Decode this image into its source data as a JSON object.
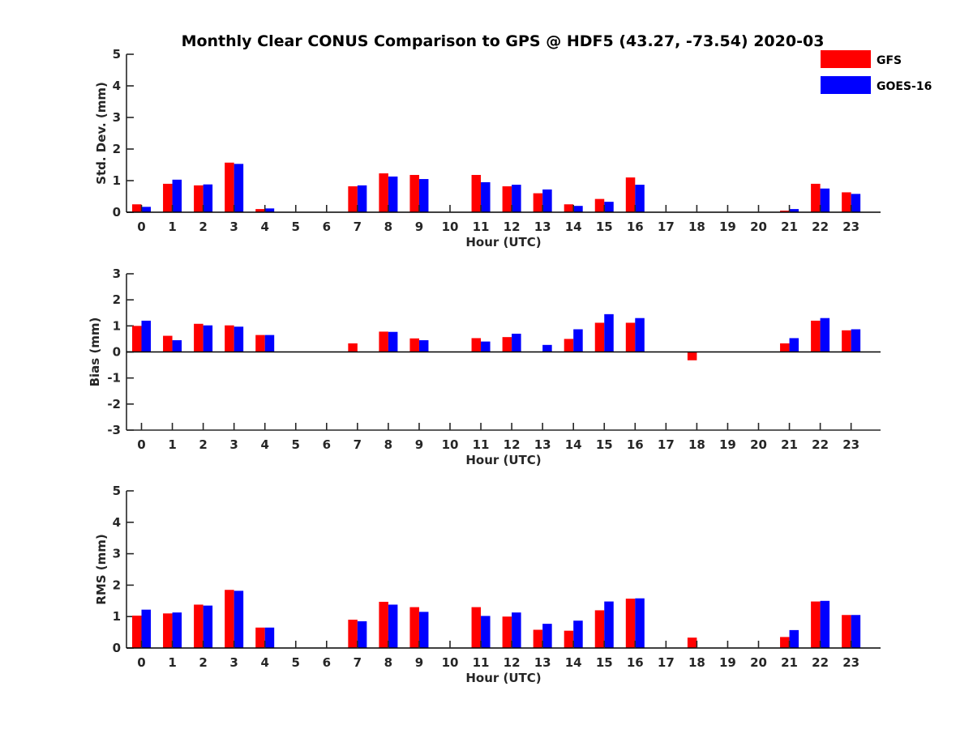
{
  "title": "Monthly Clear CONUS Comparison to GPS @ HDF5 (43.27, -73.54) 2020-03",
  "colors": {
    "GFS": "#ff0000",
    "GOES-16": "#0000ff"
  },
  "legend": {
    "placement": "top-right",
    "entries": [
      "GFS",
      "GOES-16"
    ]
  },
  "chart_data": [
    {
      "type": "bar",
      "ylabel": "Std. Dev. (mm)",
      "xlabel": "Hour (UTC)",
      "ylim": [
        0,
        5
      ],
      "yticks": [
        0,
        1,
        2,
        3,
        4,
        5
      ],
      "categories": [
        "0",
        "1",
        "2",
        "3",
        "4",
        "5",
        "6",
        "7",
        "8",
        "9",
        "10",
        "11",
        "12",
        "13",
        "14",
        "15",
        "16",
        "17",
        "18",
        "19",
        "20",
        "21",
        "22",
        "23"
      ],
      "series": [
        {
          "name": "GFS",
          "values": [
            0.25,
            0.9,
            0.85,
            1.57,
            0.1,
            null,
            null,
            0.82,
            1.23,
            1.18,
            null,
            1.18,
            0.82,
            0.6,
            0.25,
            0.42,
            1.1,
            null,
            null,
            null,
            null,
            0.05,
            0.9,
            0.63
          ]
        },
        {
          "name": "GOES-16",
          "values": [
            0.17,
            1.03,
            0.88,
            1.53,
            0.12,
            null,
            null,
            0.85,
            1.13,
            1.05,
            null,
            0.95,
            0.87,
            0.72,
            0.2,
            0.33,
            0.87,
            null,
            null,
            null,
            null,
            0.1,
            0.75,
            0.58
          ]
        }
      ]
    },
    {
      "type": "bar",
      "ylabel": "Bias (mm)",
      "xlabel": "Hour (UTC)",
      "ylim": [
        -3,
        3
      ],
      "yticks": [
        -3,
        -2,
        -1,
        0,
        1,
        2,
        3
      ],
      "categories": [
        "0",
        "1",
        "2",
        "3",
        "4",
        "5",
        "6",
        "7",
        "8",
        "9",
        "10",
        "11",
        "12",
        "13",
        "14",
        "15",
        "16",
        "17",
        "18",
        "19",
        "20",
        "21",
        "22",
        "23"
      ],
      "series": [
        {
          "name": "GFS",
          "values": [
            1.0,
            0.62,
            1.08,
            1.02,
            0.65,
            null,
            null,
            0.33,
            0.78,
            0.52,
            null,
            0.53,
            0.57,
            null,
            0.5,
            1.12,
            1.12,
            null,
            -0.32,
            null,
            null,
            0.33,
            1.2,
            0.83
          ]
        },
        {
          "name": "GOES-16",
          "values": [
            1.2,
            0.45,
            1.02,
            0.97,
            0.65,
            null,
            null,
            null,
            0.77,
            0.45,
            null,
            0.4,
            0.7,
            0.27,
            0.87,
            1.45,
            1.3,
            null,
            null,
            null,
            null,
            0.53,
            1.3,
            0.87
          ]
        }
      ]
    },
    {
      "type": "bar",
      "ylabel": "RMS (mm)",
      "xlabel": "Hour (UTC)",
      "ylim": [
        0,
        5
      ],
      "yticks": [
        0,
        1,
        2,
        3,
        4,
        5
      ],
      "categories": [
        "0",
        "1",
        "2",
        "3",
        "4",
        "5",
        "6",
        "7",
        "8",
        "9",
        "10",
        "11",
        "12",
        "13",
        "14",
        "15",
        "16",
        "17",
        "18",
        "19",
        "20",
        "21",
        "22",
        "23"
      ],
      "series": [
        {
          "name": "GFS",
          "values": [
            1.03,
            1.1,
            1.38,
            1.85,
            0.65,
            null,
            null,
            0.9,
            1.47,
            1.3,
            null,
            1.3,
            1.0,
            0.58,
            0.55,
            1.2,
            1.57,
            null,
            0.33,
            null,
            null,
            0.35,
            1.48,
            1.05
          ]
        },
        {
          "name": "GOES-16",
          "values": [
            1.22,
            1.13,
            1.35,
            1.82,
            0.65,
            null,
            null,
            0.85,
            1.38,
            1.15,
            null,
            1.02,
            1.13,
            0.77,
            0.87,
            1.48,
            1.58,
            null,
            null,
            null,
            null,
            0.57,
            1.5,
            1.05
          ]
        }
      ]
    }
  ]
}
